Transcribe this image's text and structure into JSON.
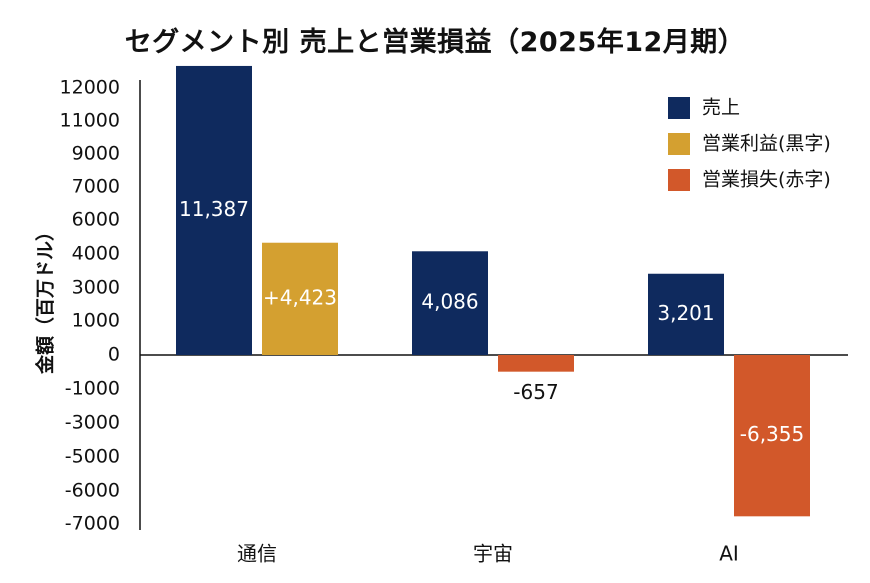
{
  "chart_data": {
    "type": "bar",
    "title": "セグメント別 売上と営業損益（2025年12月期）",
    "ylabel": "金額（百万ドル）",
    "xlabel": "",
    "categories": [
      "通信",
      "宇宙",
      "AI"
    ],
    "y_ticks": [
      "12000",
      "11000",
      "9000",
      "7000",
      "6000",
      "4000",
      "3000",
      "1000",
      "0",
      "-1000",
      "-3000",
      "-5000",
      "-6000",
      "-7000"
    ],
    "ylim": [
      -7000,
      12000
    ],
    "series": [
      {
        "name": "売上",
        "values": [
          11387,
          4086,
          3201
        ],
        "labels": [
          "11,387",
          "4,086",
          "3,201"
        ]
      },
      {
        "name": "営業損益",
        "values": [
          4423,
          -657,
          -6355
        ],
        "labels": [
          "+4,423",
          "-657",
          "-6,355"
        ]
      }
    ],
    "legend": [
      {
        "name": "売上",
        "color": "#0f2a5e"
      },
      {
        "name": "営業利益(黒字)",
        "color": "#d4a030"
      },
      {
        "name": "営業損失(赤字)",
        "color": "#d2582a"
      }
    ],
    "legend_position": "top-right",
    "grid": false
  }
}
